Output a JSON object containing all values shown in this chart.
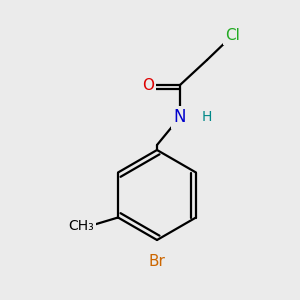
{
  "bg_color": "#ebebeb",
  "bond_color": "#000000",
  "atom_colors": {
    "Cl": "#22aa22",
    "O": "#dd0000",
    "N": "#0000cc",
    "H": "#008888",
    "Br": "#cc6600",
    "C": "#000000"
  },
  "lw": 1.6
}
